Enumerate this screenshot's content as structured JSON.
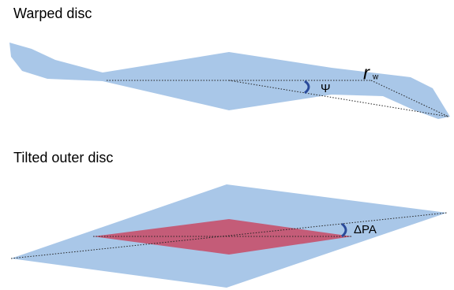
{
  "panels": [
    {
      "title": "Warped disc",
      "labels": {
        "angle": "Ψ",
        "radius": "r",
        "radius_subscript": "w"
      }
    },
    {
      "title": "Tilted outer disc",
      "labels": {
        "angle": "ΔPA"
      }
    }
  ]
}
